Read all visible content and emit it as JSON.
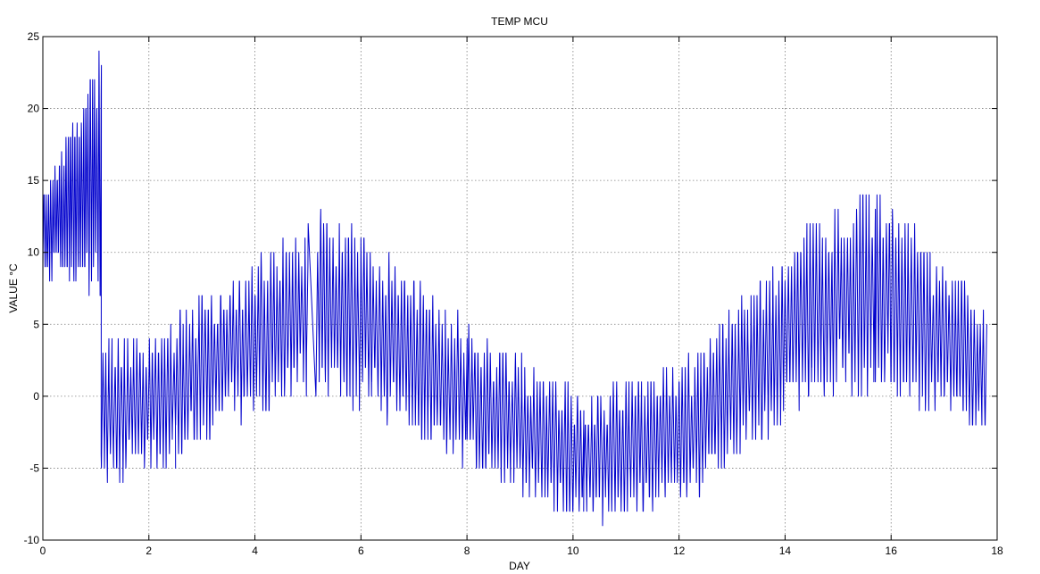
{
  "chart_data": {
    "type": "line",
    "title": "TEMP MCU",
    "xlabel": "DAY",
    "ylabel": "VALUE °C",
    "xlim": [
      0,
      18
    ],
    "ylim": [
      -10,
      25
    ],
    "xticks": [
      0,
      2,
      4,
      6,
      8,
      10,
      12,
      14,
      16,
      18
    ],
    "yticks": [
      -10,
      -5,
      0,
      5,
      10,
      15,
      20,
      25
    ],
    "grid": true,
    "legend": "none",
    "color": "#0000cc",
    "series": [
      {
        "segments": [
          {
            "x_start": 0.0,
            "x_end": 1.1,
            "points_per_day": 48,
            "low_start": 8,
            "low_end": 7,
            "high_start": 14,
            "high_end": 24,
            "skew": 0.4
          },
          {
            "x_start": 1.1,
            "x_end": 2.5,
            "points_per_day": 34,
            "low_start": -6,
            "low_end": -5,
            "high_start": 4,
            "high_end": 5,
            "skew": 0.5
          },
          {
            "x_start": 2.5,
            "x_end": 5.0,
            "points_per_day": 34,
            "low_start": -4,
            "low_end": 0,
            "high_start": 6,
            "high_end": 12,
            "skew": 0.5
          },
          {
            "x_start": 5.15,
            "x_end": 6.2,
            "points_per_day": 34,
            "low_start": 0,
            "low_end": -1,
            "high_start": 13,
            "high_end": 11,
            "skew": 0.5
          },
          {
            "x_start": 6.2,
            "x_end": 8.0,
            "points_per_day": 34,
            "low_start": -1,
            "low_end": -5,
            "high_start": 11,
            "high_end": 5,
            "skew": 0.5
          },
          {
            "x_start": 8.0,
            "x_end": 10.2,
            "points_per_day": 34,
            "low_start": -5,
            "low_end": -9,
            "high_start": 5,
            "high_end": 0,
            "skew": 0.5
          },
          {
            "x_start": 10.2,
            "x_end": 12.5,
            "points_per_day": 34,
            "low_start": -9,
            "low_end": -7,
            "high_start": 0,
            "high_end": 3,
            "skew": 0.5
          },
          {
            "x_start": 12.5,
            "x_end": 14.5,
            "points_per_day": 34,
            "low_start": -6,
            "low_end": -1,
            "high_start": 4,
            "high_end": 12,
            "skew": 0.5
          },
          {
            "x_start": 14.5,
            "x_end": 15.7,
            "points_per_day": 34,
            "low_start": 0,
            "low_end": 0,
            "high_start": 12,
            "high_end": 15,
            "skew": 0.5
          },
          {
            "x_start": 15.7,
            "x_end": 17.8,
            "points_per_day": 34,
            "low_start": 0,
            "low_end": -3,
            "high_start": 15,
            "high_end": 6,
            "skew": 0.5
          }
        ]
      }
    ]
  }
}
